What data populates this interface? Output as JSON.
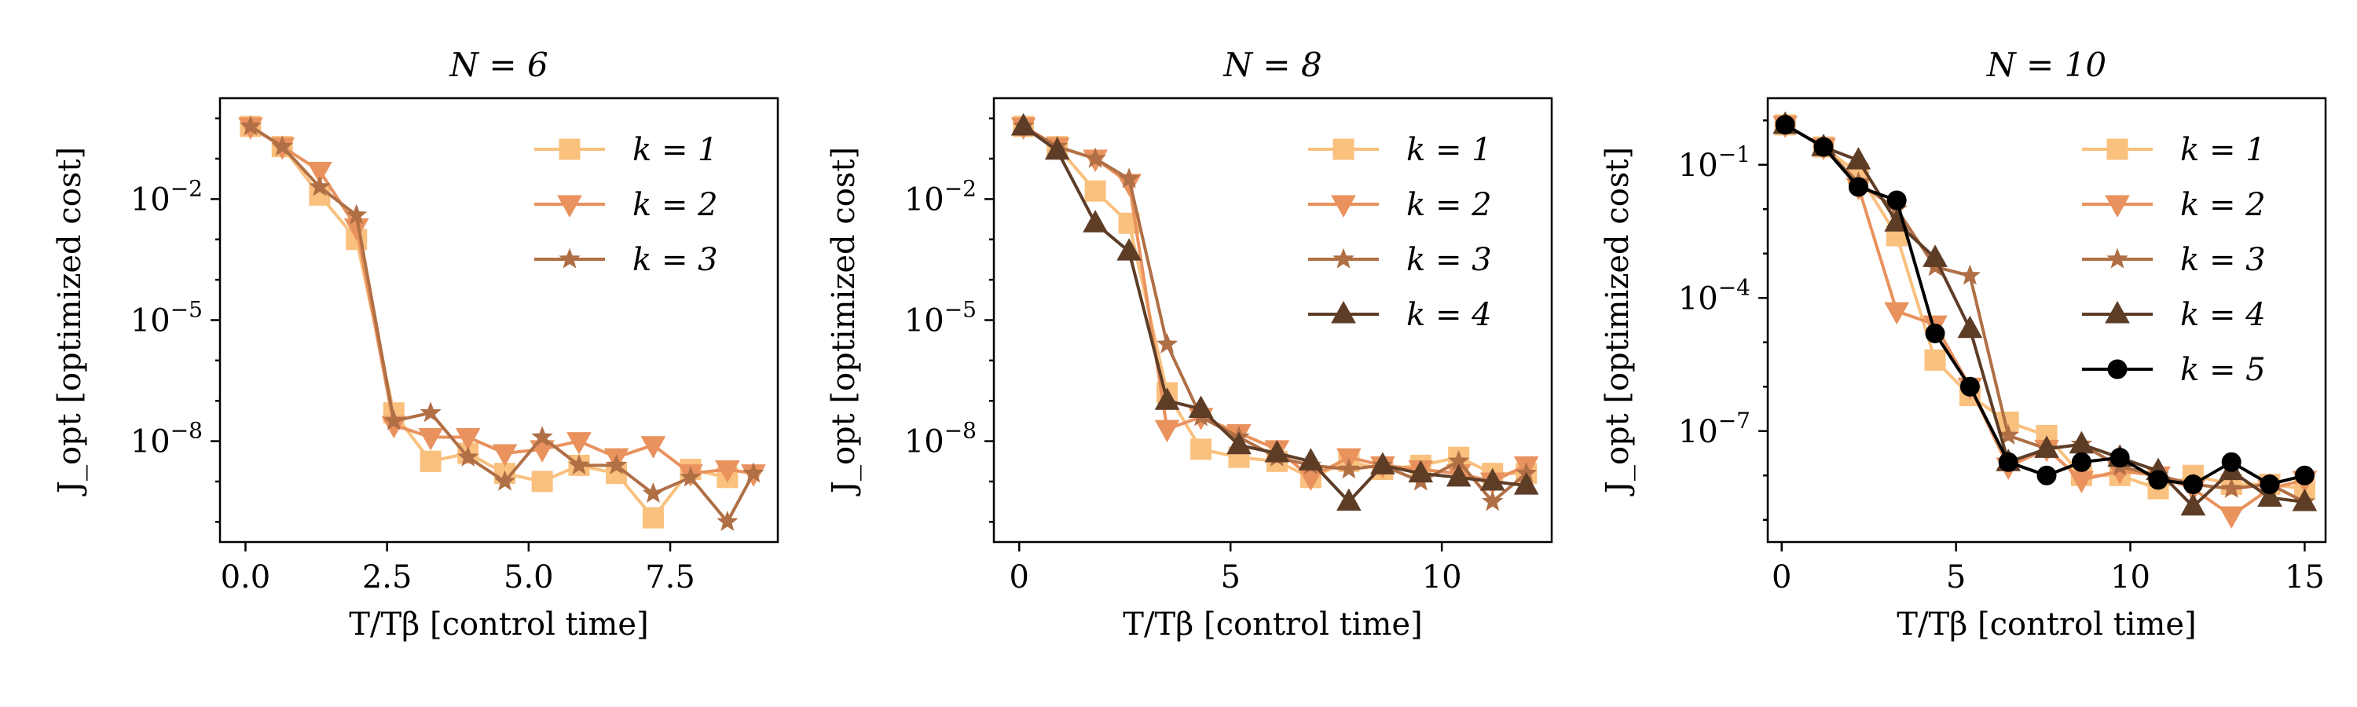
{
  "chart_data": [
    {
      "type": "line",
      "title": "N = 6",
      "xlabel": "T/Tβ [control time]",
      "ylabel": "J_opt [optimized cost]",
      "yscale": "log",
      "xlim": [
        -0.45,
        9.4
      ],
      "ylim_log10": [
        -10.5,
        0.5
      ],
      "xticks": [
        0,
        2.5,
        5,
        7.5
      ],
      "xtick_labels": [
        "0.0",
        "2.5",
        "5.0",
        "7.5"
      ],
      "ytick_exponents": [
        -2,
        -5,
        -8
      ],
      "legend_position": "top-right",
      "series": [
        {
          "name": "k = 1",
          "label_pre": "k = 1",
          "marker": "square",
          "color": "#f9c07e",
          "x": [
            0.09,
            0.65,
            1.31,
            1.96,
            2.62,
            3.27,
            3.93,
            4.58,
            5.24,
            5.89,
            6.55,
            7.2,
            7.86,
            8.51
          ],
          "y_log10": [
            -0.2,
            -0.7,
            -1.9,
            -3.0,
            -7.3,
            -8.5,
            -8.3,
            -8.8,
            -9.0,
            -8.6,
            -8.8,
            -9.9,
            -8.7,
            -8.9
          ]
        },
        {
          "name": "k = 2",
          "label_pre": "k = 2",
          "marker": "triangle-down",
          "color": "#e9925e",
          "x": [
            0.09,
            0.65,
            1.31,
            1.96,
            2.62,
            3.27,
            3.93,
            4.58,
            5.24,
            5.89,
            6.55,
            7.2,
            7.86,
            8.51,
            8.97
          ],
          "y_log10": [
            -0.2,
            -0.7,
            -1.3,
            -2.7,
            -7.6,
            -7.9,
            -7.9,
            -8.3,
            -8.2,
            -8.0,
            -8.4,
            -8.1,
            -8.8,
            -8.7,
            -8.8
          ]
        },
        {
          "name": "k = 3",
          "label_pre": "k = 3",
          "marker": "star",
          "color": "#b06f45",
          "x": [
            0.09,
            0.65,
            1.31,
            1.96,
            2.62,
            3.27,
            3.93,
            4.58,
            5.24,
            5.89,
            6.55,
            7.2,
            7.86,
            8.51,
            8.97
          ],
          "y_log10": [
            -0.2,
            -0.7,
            -1.7,
            -2.4,
            -7.5,
            -7.3,
            -8.4,
            -9.0,
            -7.9,
            -8.6,
            -8.6,
            -9.3,
            -8.9,
            -10.0,
            -8.8
          ]
        }
      ]
    },
    {
      "type": "line",
      "title": "N = 8",
      "xlabel": "T/Tβ [control time]",
      "ylabel": "J_opt [optimized cost]",
      "yscale": "log",
      "xlim": [
        -0.6,
        12.6
      ],
      "ylim_log10": [
        -10.5,
        0.5
      ],
      "xticks": [
        0,
        5,
        10
      ],
      "xtick_labels": [
        "0",
        "5",
        "10"
      ],
      "ytick_exponents": [
        -2,
        -5,
        -8
      ],
      "legend_position": "top-right",
      "series": [
        {
          "name": "k = 1",
          "label_pre": "k = 1",
          "marker": "square",
          "color": "#f9c07e",
          "x": [
            0.1,
            0.9,
            1.8,
            2.6,
            3.5,
            4.3,
            5.2,
            6.1,
            6.9,
            7.8,
            8.6,
            9.5,
            10.4,
            11.2,
            12.0
          ],
          "y_log10": [
            -0.2,
            -0.7,
            -1.8,
            -2.6,
            -6.8,
            -8.2,
            -8.4,
            -8.5,
            -8.9,
            -8.5,
            -8.7,
            -8.6,
            -8.4,
            -8.8,
            -8.8
          ]
        },
        {
          "name": "k = 2",
          "label_pre": "k = 2",
          "marker": "triangle-down",
          "color": "#e9925e",
          "x": [
            0.1,
            0.9,
            1.8,
            2.6,
            3.5,
            4.3,
            5.2,
            6.1,
            6.9,
            7.8,
            8.6,
            9.5,
            10.4,
            11.2,
            12.0
          ],
          "y_log10": [
            -0.2,
            -0.7,
            -1.0,
            -1.6,
            -7.7,
            -7.4,
            -7.8,
            -8.2,
            -8.9,
            -8.4,
            -8.6,
            -8.7,
            -8.8,
            -9.0,
            -8.6
          ]
        },
        {
          "name": "k = 3",
          "label_pre": "k = 3",
          "marker": "star",
          "color": "#b06f45",
          "x": [
            0.1,
            0.9,
            1.8,
            2.6,
            3.5,
            4.3,
            5.2,
            6.1,
            6.9,
            7.8,
            8.6,
            9.5,
            10.4,
            11.2,
            12.0
          ],
          "y_log10": [
            -0.2,
            -0.7,
            -1.0,
            -1.5,
            -5.6,
            -7.4,
            -7.9,
            -8.4,
            -8.6,
            -8.7,
            -8.6,
            -9.0,
            -8.5,
            -9.5,
            -8.8
          ]
        },
        {
          "name": "k = 4",
          "label_pre": "k = 4",
          "marker": "triangle-up",
          "color": "#5e3d27",
          "x": [
            0.1,
            0.9,
            1.8,
            2.6,
            3.5,
            4.3,
            5.2,
            6.1,
            6.9,
            7.8,
            8.6,
            9.5,
            10.4,
            11.2,
            12.0
          ],
          "y_log10": [
            -0.2,
            -0.8,
            -2.6,
            -3.3,
            -7.0,
            -7.2,
            -8.1,
            -8.3,
            -8.5,
            -9.5,
            -8.6,
            -8.8,
            -8.9,
            -9.0,
            -9.1
          ]
        }
      ]
    },
    {
      "type": "line",
      "title": "N = 10",
      "xlabel": "T/Tβ [control time]",
      "ylabel": "J_opt [optimized cost]",
      "yscale": "log",
      "xlim": [
        -0.4,
        15.6
      ],
      "ylim_log10": [
        -9.5,
        0.5
      ],
      "xticks": [
        0,
        5,
        10,
        15
      ],
      "xtick_labels": [
        "0",
        "5",
        "10",
        "15"
      ],
      "ytick_exponents": [
        -1,
        -4,
        -7
      ],
      "legend_position": "top-right",
      "series": [
        {
          "name": "k = 1",
          "label_pre": "k = 1",
          "marker": "square",
          "color": "#f9c07e",
          "x": [
            0.1,
            1.2,
            2.2,
            3.3,
            4.4,
            5.4,
            6.5,
            7.6,
            8.6,
            9.7,
            10.8,
            11.8,
            12.9,
            14.0,
            15.0
          ],
          "y_log10": [
            -0.1,
            -0.6,
            -1.2,
            -2.6,
            -5.4,
            -6.2,
            -6.8,
            -7.1,
            -8.0,
            -8.0,
            -8.3,
            -8.0,
            -8.2,
            -8.2,
            -8.3
          ]
        },
        {
          "name": "k = 2",
          "label_pre": "k = 2",
          "marker": "triangle-down",
          "color": "#e9925e",
          "x": [
            0.1,
            1.2,
            2.2,
            3.3,
            4.4,
            5.4,
            6.5,
            7.6,
            8.6,
            9.7,
            10.8,
            11.8,
            12.9,
            14.0,
            15.0
          ],
          "y_log10": [
            -0.1,
            -0.6,
            -1.5,
            -4.3,
            -4.6,
            -6.0,
            -7.8,
            -7.4,
            -8.1,
            -7.9,
            -8.0,
            -8.3,
            -8.9,
            -8.3,
            -8.1
          ]
        },
        {
          "name": "k = 3",
          "label_pre": "k = 3",
          "marker": "star",
          "color": "#b06f45",
          "x": [
            0.1,
            1.2,
            2.2,
            3.3,
            4.4,
            5.4,
            6.5,
            7.6,
            8.6,
            9.7,
            10.8,
            11.8,
            12.9,
            14.0,
            15.0
          ],
          "y_log10": [
            -0.1,
            -0.6,
            -1.4,
            -2.0,
            -3.3,
            -3.5,
            -7.1,
            -7.4,
            -7.3,
            -7.8,
            -8.0,
            -8.2,
            -8.3,
            -8.2,
            -8.6
          ]
        },
        {
          "name": "k = 4",
          "label_pre": "k = 4",
          "marker": "triangle-up",
          "color": "#5e3d27",
          "x": [
            0.1,
            1.2,
            2.2,
            3.3,
            4.4,
            5.4,
            6.5,
            7.6,
            8.6,
            9.7,
            10.8,
            11.8,
            12.9,
            14.0,
            15.0
          ],
          "y_log10": [
            -0.1,
            -0.6,
            -0.9,
            -2.3,
            -3.1,
            -4.7,
            -7.7,
            -7.4,
            -7.3,
            -7.6,
            -7.9,
            -8.7,
            -7.9,
            -8.5,
            -8.6
          ]
        },
        {
          "name": "k = 5",
          "label_pre": "k = 5",
          "marker": "circle",
          "color": "#000000",
          "x": [
            0.1,
            1.2,
            2.2,
            3.3,
            4.4,
            5.4,
            6.5,
            7.6,
            8.6,
            9.7,
            10.8,
            11.8,
            12.9,
            14.0,
            15.0
          ],
          "y_log10": [
            -0.1,
            -0.6,
            -1.5,
            -1.8,
            -4.8,
            -6.0,
            -7.7,
            -8.0,
            -7.7,
            -7.6,
            -8.1,
            -8.2,
            -7.7,
            -8.2,
            -8.0
          ]
        }
      ]
    }
  ]
}
